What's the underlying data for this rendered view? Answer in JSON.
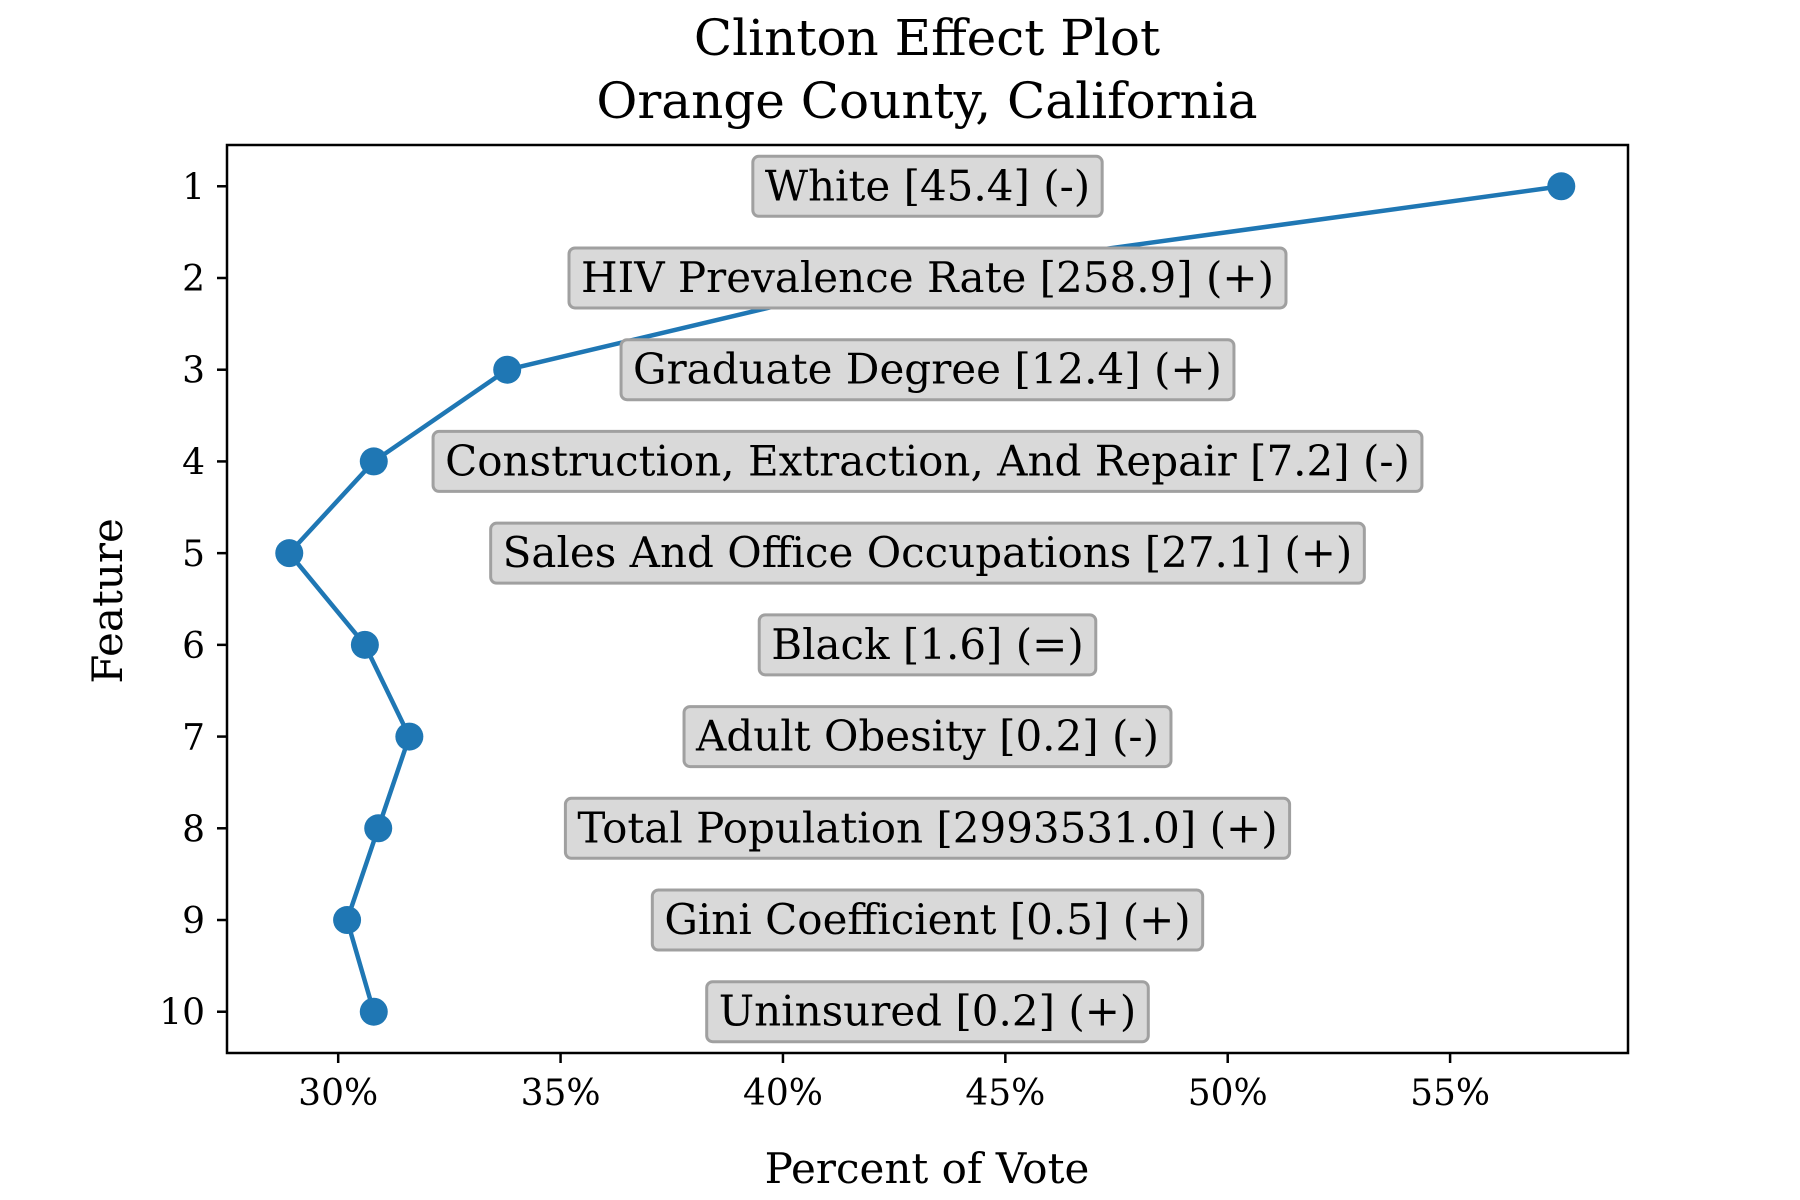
{
  "chart_data": {
    "type": "line",
    "title": [
      "Clinton Effect Plot",
      "Orange County, California"
    ],
    "xlabel": "Percent of Vote",
    "ylabel": "Feature",
    "xlim": [
      27.5,
      59.0
    ],
    "ylim": [
      10.45,
      0.55
    ],
    "x_ticks": [
      30,
      35,
      40,
      45,
      50,
      55
    ],
    "x_tick_labels": [
      "30%",
      "35%",
      "40%",
      "45%",
      "50%",
      "55%"
    ],
    "y_ticks": [
      1,
      2,
      3,
      4,
      5,
      6,
      7,
      8,
      9,
      10
    ],
    "y_tick_labels": [
      "1",
      "2",
      "3",
      "4",
      "5",
      "6",
      "7",
      "8",
      "9",
      "10"
    ],
    "grid": false,
    "series": [
      {
        "color": "#1f77b4",
        "x": [
          57.5,
          42.5,
          33.8,
          30.8,
          28.9,
          30.6,
          31.6,
          30.9,
          30.2,
          30.8
        ],
        "y": [
          1,
          2,
          3,
          4,
          5,
          6,
          7,
          8,
          9,
          10
        ]
      }
    ],
    "annotations": [
      "White [45.4] (-)",
      "HIV Prevalence Rate [258.9] (+)",
      "Graduate Degree [12.4] (+)",
      "Construction, Extraction, And Repair [7.2] (-)",
      "Sales And Office Occupations [27.1] (+)",
      "Black [1.6] (=)",
      "Adult Obesity [0.2] (-)",
      "Total Population [2993531.0] (+)",
      "Gini Coefficient [0.5] (+)",
      "Uninsured [0.2] (+)"
    ],
    "annotation_style": {
      "box_fill": "#d9d9d9",
      "box_edge": "#a0a0a0"
    }
  }
}
